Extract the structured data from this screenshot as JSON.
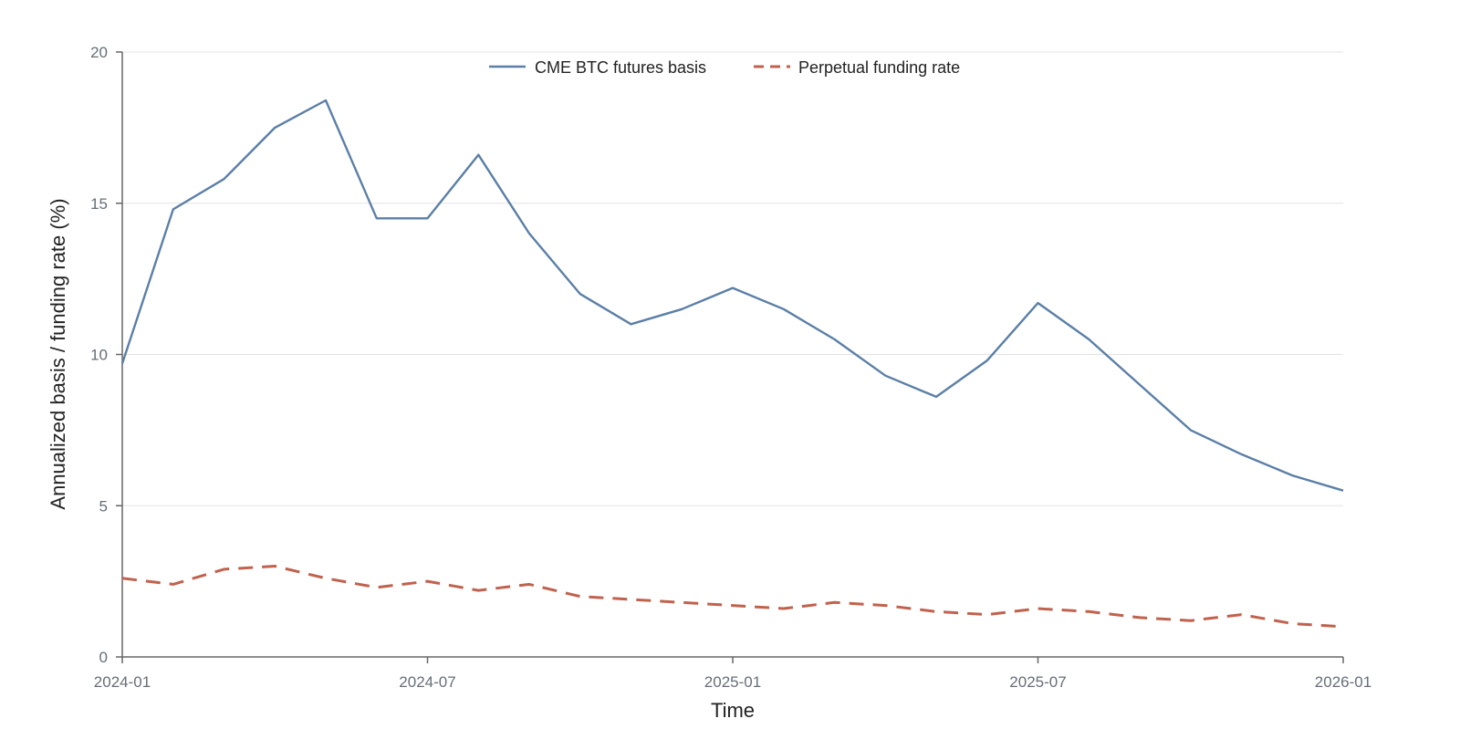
{
  "chart_data": {
    "type": "line",
    "title": "",
    "xlabel": "Time",
    "ylabel": "Annualized basis / funding rate (%)",
    "ylim": [
      0,
      20
    ],
    "xlim": [
      "2024-01",
      "2026-01"
    ],
    "grid": true,
    "legend_position": "top-center",
    "x_ticks": [
      "2024-01",
      "2024-07",
      "2025-01",
      "2025-07",
      "2026-01"
    ],
    "y_ticks": [
      0,
      5,
      10,
      15,
      20
    ],
    "x": [
      "2024-01",
      "2024-02",
      "2024-03",
      "2024-04",
      "2024-05",
      "2024-06",
      "2024-07",
      "2024-08",
      "2024-09",
      "2024-10",
      "2024-11",
      "2024-12",
      "2025-01",
      "2025-02",
      "2025-03",
      "2025-04",
      "2025-05",
      "2025-06",
      "2025-07",
      "2025-08",
      "2025-09",
      "2025-10",
      "2025-11",
      "2025-12",
      "2026-01"
    ],
    "series": [
      {
        "name": "CME BTC futures basis",
        "color": "#5b7fa6",
        "style": "solid",
        "values": [
          9.7,
          14.8,
          15.8,
          17.5,
          18.4,
          14.5,
          14.5,
          16.6,
          14.0,
          12.0,
          11.0,
          11.5,
          12.2,
          11.5,
          10.5,
          9.3,
          8.6,
          9.8,
          11.7,
          10.5,
          9.0,
          7.5,
          6.7,
          6.0,
          5.5
        ]
      },
      {
        "name": "Perpetual funding rate",
        "color": "#c0624d",
        "style": "dashed",
        "values": [
          2.6,
          2.4,
          2.9,
          3.0,
          2.6,
          2.3,
          2.5,
          2.2,
          2.4,
          2.0,
          1.9,
          1.8,
          1.7,
          1.6,
          1.8,
          1.7,
          1.5,
          1.4,
          1.6,
          1.5,
          1.3,
          1.2,
          1.4,
          1.1,
          1.0
        ]
      }
    ]
  }
}
